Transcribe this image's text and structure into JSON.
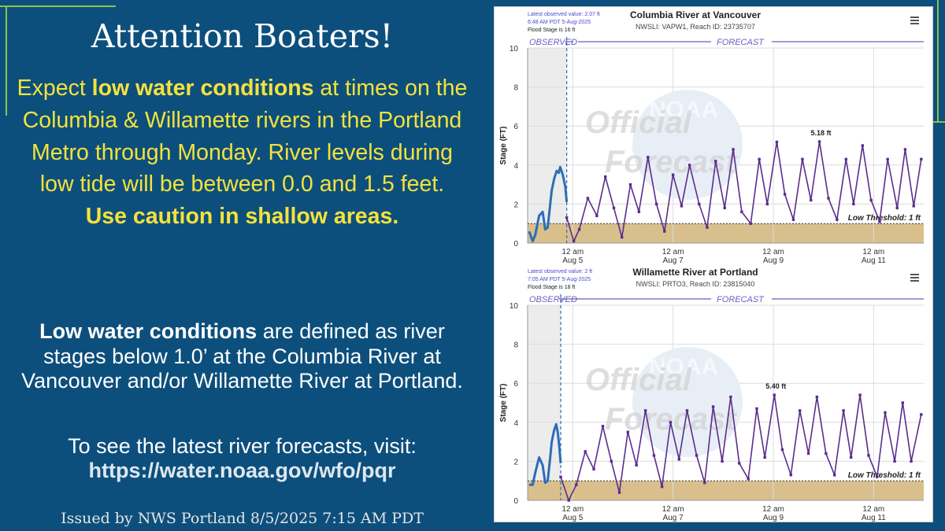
{
  "headline": "Attention Boaters!",
  "alert": {
    "part1": "Expect ",
    "bold1": "low water conditions",
    "part2": " at times on the Columbia & Willamette rivers in the Portland Metro through Monday. River levels during low tide will be between 0.0 and 1.5 feet.",
    "caution": "Use caution in shallow areas."
  },
  "definition": {
    "bold": "Low water conditions",
    "text": " are defined as river stages below 1.0’ at the Columbia River at Vancouver and/or Willamette River at Portland."
  },
  "visit": {
    "text": "To see the latest river forecasts, visit:",
    "url": "https://water.noaa.gov/wfo/pqr"
  },
  "issued": "Issued by NWS Portland 8/5/2025 7:15 AM PDT",
  "colors": {
    "background": "#0d4f7c",
    "accent_green": "#8bc34a",
    "alert_yellow": "#f4e23c",
    "observed": "#2c6db8",
    "forecast": "#5b2d8e",
    "low_band": "#d8bf8c",
    "label_purple": "#6b5fc0"
  },
  "chart_data": [
    {
      "type": "line",
      "title": "Columbia River at Vancouver",
      "subtitle": "NWSLI: VAPW1, Reach ID: 23735707",
      "info": [
        "Latest observed value: 2.07 ft",
        "6:48 AM PDT 5-Aug-2025",
        "Flood Stage is 16 ft"
      ],
      "ylabel": "Stage (FT)",
      "ylim": [
        0,
        10
      ],
      "yticks": [
        "0",
        "2",
        "4",
        "6",
        "8",
        "10"
      ],
      "xticks": [
        {
          "day": 5,
          "top": "12 am",
          "bottom": "Aug 5"
        },
        {
          "day": 7,
          "top": "12 am",
          "bottom": "Aug 7"
        },
        {
          "day": 9,
          "top": "12 am",
          "bottom": "Aug 9"
        },
        {
          "day": 11,
          "top": "12 am",
          "bottom": "Aug 11"
        }
      ],
      "xlim_days": [
        4.1,
        12.0
      ],
      "observed_label": "OBSERVED",
      "forecast_label": "FORECAST",
      "low_threshold": 1.0,
      "low_threshold_label": "Low Threshold: 1 ft",
      "peak_label": "5.18 ft",
      "watermark": [
        "Official",
        "Forecast"
      ],
      "watermark_logo": "NOAA",
      "grid": true,
      "series": [
        {
          "kind": "observed",
          "x": [
            4.13,
            4.2,
            4.25,
            4.33,
            4.4,
            4.45,
            4.5,
            4.55,
            4.58,
            4.63,
            4.68,
            4.72,
            4.75,
            4.8,
            4.85,
            4.88
          ],
          "values": [
            0.6,
            0.1,
            0.4,
            1.4,
            1.6,
            0.7,
            0.8,
            2.0,
            2.7,
            3.3,
            3.7,
            3.6,
            3.9,
            3.5,
            2.9,
            2.1
          ]
        },
        {
          "kind": "forecast",
          "x": [
            4.88,
            5.02,
            5.13,
            5.3,
            5.48,
            5.65,
            5.82,
            5.98,
            6.15,
            6.32,
            6.5,
            6.67,
            6.83,
            7.0,
            7.17,
            7.33,
            7.52,
            7.68,
            7.85,
            8.03,
            8.2,
            8.37,
            8.55,
            8.72,
            8.88,
            9.07,
            9.23,
            9.4,
            9.58,
            9.75,
            9.92,
            10.1,
            10.27,
            10.45,
            10.6,
            10.78,
            10.95,
            11.12,
            11.28,
            11.47,
            11.63,
            11.8,
            11.95
          ],
          "values": [
            1.3,
            0.1,
            0.7,
            2.3,
            1.4,
            3.4,
            1.8,
            0.3,
            3.0,
            1.6,
            4.4,
            2.0,
            0.6,
            3.5,
            1.9,
            4.0,
            2.0,
            0.8,
            4.2,
            1.8,
            4.8,
            1.6,
            1.0,
            4.3,
            2.0,
            5.18,
            2.5,
            1.2,
            4.3,
            2.2,
            5.2,
            2.3,
            1.2,
            4.3,
            2.0,
            5.0,
            2.2,
            1.1,
            4.3,
            1.8,
            4.8,
            1.9,
            4.3
          ]
        }
      ]
    },
    {
      "type": "line",
      "title": "Willamette River at Portland",
      "subtitle": "NWSLI: PRTO3, Reach ID: 23815040",
      "info": [
        "Latest observed value: 2 ft",
        "7:05 AM PDT 5-Aug-2025",
        "Flood Stage is 18 ft"
      ],
      "ylabel": "Stage (FT)",
      "ylim": [
        0,
        10
      ],
      "yticks": [
        "0",
        "2",
        "4",
        "6",
        "8",
        "10"
      ],
      "xticks": [
        {
          "day": 5,
          "top": "12 am",
          "bottom": "Aug 5"
        },
        {
          "day": 7,
          "top": "12 am",
          "bottom": "Aug 7"
        },
        {
          "day": 9,
          "top": "12 am",
          "bottom": "Aug 9"
        },
        {
          "day": 11,
          "top": "12 am",
          "bottom": "Aug 11"
        }
      ],
      "xlim_days": [
        4.1,
        12.0
      ],
      "observed_label": "OBSERVED",
      "forecast_label": "FORECAST",
      "low_threshold": 1.0,
      "low_threshold_label": "Low Threshold: 1 ft",
      "peak_label": "5.40 ft",
      "watermark": [
        "Official",
        "Forecast"
      ],
      "watermark_logo": "NOAA",
      "grid": true,
      "series": [
        {
          "kind": "observed",
          "x": [
            4.13,
            4.2,
            4.25,
            4.33,
            4.4,
            4.45,
            4.5,
            4.55,
            4.58,
            4.63,
            4.67,
            4.7,
            4.73,
            4.76
          ],
          "values": [
            0.8,
            0.8,
            1.4,
            2.2,
            1.8,
            0.9,
            1.0,
            2.2,
            3.0,
            3.6,
            3.9,
            3.5,
            2.8,
            1.9
          ]
        },
        {
          "kind": "forecast",
          "x": [
            4.76,
            4.92,
            5.07,
            5.25,
            5.42,
            5.6,
            5.77,
            5.93,
            6.1,
            6.27,
            6.45,
            6.62,
            6.78,
            6.95,
            7.12,
            7.28,
            7.47,
            7.63,
            7.8,
            7.98,
            8.15,
            8.32,
            8.5,
            8.67,
            8.83,
            9.02,
            9.18,
            9.35,
            9.53,
            9.7,
            9.87,
            10.05,
            10.22,
            10.4,
            10.55,
            10.73,
            10.9,
            11.07,
            11.23,
            11.42,
            11.58,
            11.75,
            11.95
          ],
          "values": [
            1.2,
            0.0,
            0.8,
            2.5,
            1.6,
            3.8,
            2.0,
            0.4,
            3.5,
            1.8,
            4.6,
            2.3,
            0.7,
            4.0,
            2.1,
            4.6,
            2.3,
            0.9,
            4.8,
            2.0,
            5.3,
            1.9,
            1.1,
            4.7,
            2.2,
            5.4,
            2.6,
            1.3,
            4.6,
            2.4,
            5.3,
            2.4,
            1.3,
            4.6,
            2.2,
            5.4,
            2.3,
            1.2,
            4.5,
            2.0,
            5.0,
            2.0,
            4.4
          ]
        }
      ]
    }
  ]
}
